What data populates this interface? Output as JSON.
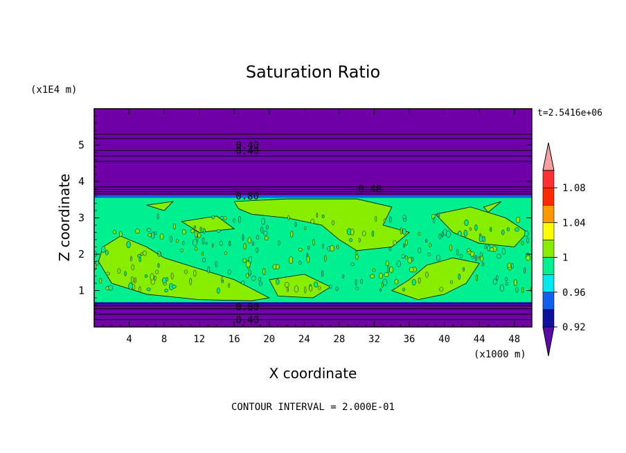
{
  "chart_data": {
    "type": "heatmap",
    "title": "Saturation Ratio",
    "xlabel": "X coordinate",
    "ylabel": "Z coordinate",
    "x_unit": "(x1000 m)",
    "y_unit": "(x1E4 m)",
    "time_label": "t=2.5416e+06",
    "footer": "CONTOUR INTERVAL = 2.000E-01",
    "xlim": [
      0,
      50
    ],
    "ylim": [
      0,
      6
    ],
    "x_ticks": [
      "4",
      "8",
      "12",
      "16",
      "20",
      "24",
      "28",
      "32",
      "36",
      "40",
      "44",
      "48"
    ],
    "x_tick_values": [
      4,
      8,
      12,
      16,
      20,
      24,
      28,
      32,
      36,
      40,
      44,
      48
    ],
    "y_ticks": [
      "1",
      "2",
      "3",
      "4",
      "5"
    ],
    "y_tick_values": [
      1,
      2,
      3,
      4,
      5
    ],
    "colorbar": {
      "levels": [
        0.92,
        0.94,
        0.96,
        0.98,
        1.0,
        1.02,
        1.04,
        1.06,
        1.08,
        1.1
      ],
      "labels": [
        "0.92",
        "0.96",
        "1",
        "1.04",
        "1.08"
      ],
      "label_values": [
        0.92,
        0.96,
        1.0,
        1.04,
        1.08
      ],
      "colors": [
        "#5a0aa8",
        "#1010a0",
        "#1060f0",
        "#00e8f0",
        "#00f090",
        "#88ee00",
        "#ffff00",
        "#ff9900",
        "#ff2a00",
        "#ff3030",
        "#f4a0a0"
      ]
    },
    "bands": [
      {
        "z_from": 0.0,
        "z_to": 0.65,
        "class": "below",
        "color": "#7000a8"
      },
      {
        "z_from": 0.65,
        "z_to": 3.55,
        "class": "1-1.02",
        "color": "#00f090"
      },
      {
        "z_from": 3.55,
        "z_to": 6.0,
        "class": "below",
        "color": "#7000a8"
      }
    ],
    "contour_labels": [
      {
        "text": "0.40",
        "x": 17.5,
        "z": 5.0
      },
      {
        "text": "0.40",
        "x": 17.5,
        "z": 4.85
      },
      {
        "text": "0.80",
        "x": 17.5,
        "z": 3.6
      },
      {
        "text": "0.40",
        "x": 31.5,
        "z": 3.8
      },
      {
        "text": "0.80",
        "x": 17.5,
        "z": 0.55
      },
      {
        "text": "0.40",
        "x": 17.5,
        "z": 0.2
      }
    ],
    "grid": false,
    "legend": "colorbar-right"
  }
}
